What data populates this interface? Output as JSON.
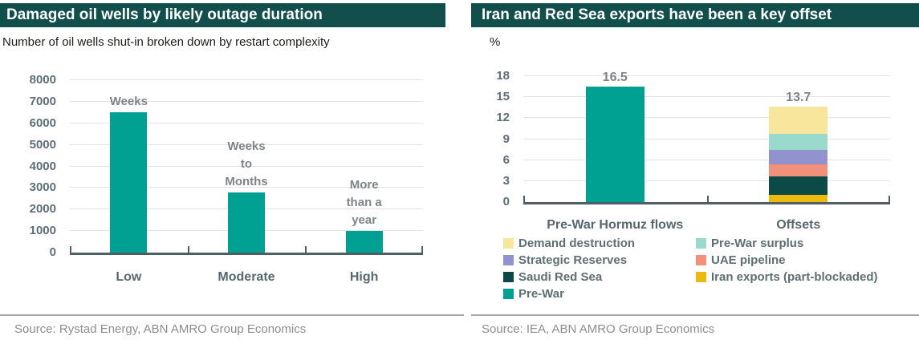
{
  "left_panel": {
    "title": "Damaged oil wells by likely outage duration",
    "subtitle": "Number of oil wells shut-in broken down by restart complexity",
    "source": "Source: Rystad Energy, ABN AMRO Group Economics"
  },
  "right_panel": {
    "title": "Iran and Red Sea exports have been a key offset",
    "unit_label": "%",
    "source": "Source: IEA, ABN AMRO Group Economics"
  },
  "colors": {
    "header_bg": "#114e4c",
    "teal": "#00a092",
    "axis": "#4e5f66",
    "gridline": "#e3e3e3",
    "tick_label": "#5d6e79",
    "category_label": "#56676f",
    "annotation": "#7e8589"
  },
  "chart_data": [
    {
      "type": "bar",
      "title": "Damaged oil wells by likely outage duration",
      "subtitle": "Number of oil wells shut-in broken down by restart complexity",
      "categories": [
        "Low",
        "Moderate",
        "High"
      ],
      "values": [
        6500,
        2800,
        1000
      ],
      "bar_annotations": [
        [
          "Weeks"
        ],
        [
          "Weeks",
          "to",
          "Months"
        ],
        [
          "More",
          "than a",
          "year"
        ]
      ],
      "bar_color": "#00a092",
      "ylim": [
        0,
        8000
      ],
      "ytick_step": 1000,
      "grid": true,
      "legend_position": "none",
      "source": "Source: Rystad Energy, ABN AMRO Group Economics"
    },
    {
      "type": "stacked-bar",
      "title": "Iran and Red Sea exports have been a key offset",
      "ylabel": "%",
      "categories": [
        "Pre-War Hormuz flows",
        "Offsets"
      ],
      "total_labels": [
        "16.5",
        "13.7"
      ],
      "ylim": [
        0,
        18
      ],
      "ytick_step": 3,
      "grid": true,
      "series": [
        {
          "name": "Pre-War",
          "color": "#00a092",
          "values": [
            16.5,
            0
          ]
        },
        {
          "name": "Iran exports (part-blockaded)",
          "color": "#ecb90f",
          "values": [
            0,
            1.0
          ]
        },
        {
          "name": "Saudi Red Sea",
          "color": "#0c4a47",
          "values": [
            0,
            2.7
          ]
        },
        {
          "name": "UAE pipeline",
          "color": "#f2907a",
          "values": [
            0,
            1.7
          ]
        },
        {
          "name": "Strategic Reserves",
          "color": "#9292ce",
          "values": [
            0,
            2.1
          ]
        },
        {
          "name": "Pre-War surplus",
          "color": "#9adacd",
          "values": [
            0,
            2.3
          ]
        },
        {
          "name": "Demand destruction",
          "color": "#f8e69c",
          "values": [
            0,
            3.9
          ]
        }
      ],
      "legend_position": "bottom",
      "legend_columns": [
        [
          {
            "label": "Demand destruction",
            "color": "#f8e69c"
          },
          {
            "label": "Strategic Reserves",
            "color": "#9292ce"
          },
          {
            "label": "Saudi Red Sea",
            "color": "#0c4a47"
          },
          {
            "label": "Pre-War",
            "color": "#00a092"
          }
        ],
        [
          {
            "label": "Pre-War surplus",
            "color": "#9adacd"
          },
          {
            "label": "UAE pipeline",
            "color": "#f2907a"
          },
          {
            "label": "Iran exports (part-blockaded)",
            "color": "#ecb90f"
          }
        ]
      ],
      "source": "Source: IEA, ABN AMRO Group Economics"
    }
  ]
}
